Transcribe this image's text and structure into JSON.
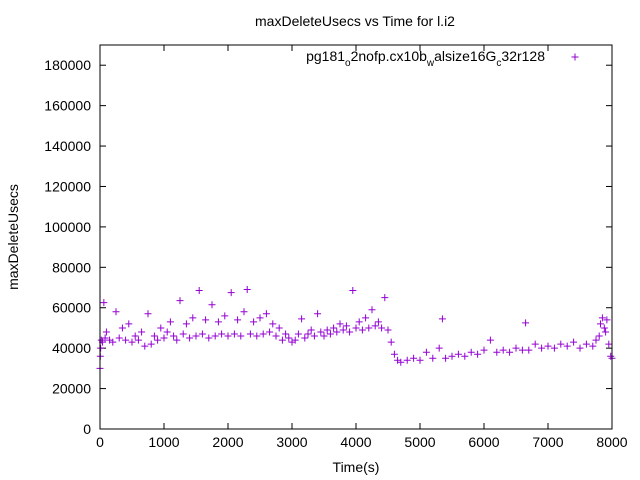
{
  "chart_data": {
    "type": "scatter",
    "title": "maxDeleteUsecs vs Time for l.i2",
    "xlabel": "Time(s)",
    "ylabel": "maxDeleteUsecs",
    "xlim": [
      0,
      8000
    ],
    "ylim": [
      0,
      190000
    ],
    "xticks": [
      0,
      1000,
      2000,
      3000,
      4000,
      5000,
      6000,
      7000,
      8000
    ],
    "yticks": [
      0,
      20000,
      40000,
      60000,
      80000,
      100000,
      120000,
      140000,
      160000,
      180000
    ],
    "xtick_labels": [
      "0",
      "1000",
      "2000",
      "3000",
      "4000",
      "5000",
      "6000",
      "7000",
      "8000"
    ],
    "ytick_labels": [
      "0",
      "20000",
      "40000",
      "60000",
      "80000",
      "100000",
      "120000",
      "140000",
      "160000",
      "180000"
    ],
    "grid": false,
    "legend_position": "top-right",
    "marker": "+",
    "color": "#9400d3",
    "series": [
      {
        "name": "pg181_o2nofp.cx10b_walsize16G_c32r128",
        "label_parts": [
          {
            "t": "pg181",
            "sub": false
          },
          {
            "t": "o",
            "sub": true
          },
          {
            "t": "2nofp.cx10b",
            "sub": false
          },
          {
            "t": "w",
            "sub": true
          },
          {
            "t": "alsize16G",
            "sub": false
          },
          {
            "t": "c",
            "sub": true
          },
          {
            "t": "32r128",
            "sub": false
          }
        ],
        "points": [
          [
            0,
            30000
          ],
          [
            5,
            36000
          ],
          [
            10,
            40000
          ],
          [
            20,
            44000
          ],
          [
            40,
            43000
          ],
          [
            60,
            62500
          ],
          [
            80,
            45000
          ],
          [
            100,
            48000
          ],
          [
            150,
            44000
          ],
          [
            200,
            43000
          ],
          [
            250,
            58000
          ],
          [
            300,
            45000
          ],
          [
            350,
            50000
          ],
          [
            400,
            44000
          ],
          [
            450,
            52000
          ],
          [
            500,
            43000
          ],
          [
            550,
            46000
          ],
          [
            600,
            44000
          ],
          [
            650,
            48000
          ],
          [
            700,
            41000
          ],
          [
            750,
            57000
          ],
          [
            800,
            42000
          ],
          [
            850,
            46000
          ],
          [
            900,
            44000
          ],
          [
            950,
            50000
          ],
          [
            1000,
            45000
          ],
          [
            1050,
            48000
          ],
          [
            1100,
            53000
          ],
          [
            1150,
            46000
          ],
          [
            1200,
            44000
          ],
          [
            1250,
            63500
          ],
          [
            1300,
            47000
          ],
          [
            1350,
            52000
          ],
          [
            1400,
            45000
          ],
          [
            1450,
            55000
          ],
          [
            1500,
            46000
          ],
          [
            1550,
            68500
          ],
          [
            1600,
            47000
          ],
          [
            1650,
            54000
          ],
          [
            1700,
            45000
          ],
          [
            1750,
            61500
          ],
          [
            1800,
            46000
          ],
          [
            1850,
            53000
          ],
          [
            1900,
            47000
          ],
          [
            1950,
            56000
          ],
          [
            2000,
            46000
          ],
          [
            2050,
            67500
          ],
          [
            2100,
            47000
          ],
          [
            2150,
            54000
          ],
          [
            2200,
            46000
          ],
          [
            2250,
            58000
          ],
          [
            2300,
            69000
          ],
          [
            2350,
            47000
          ],
          [
            2400,
            53000
          ],
          [
            2450,
            46000
          ],
          [
            2500,
            55000
          ],
          [
            2550,
            47000
          ],
          [
            2600,
            57000
          ],
          [
            2650,
            48000
          ],
          [
            2700,
            52000
          ],
          [
            2750,
            46000
          ],
          [
            2800,
            50000
          ],
          [
            2850,
            44000
          ],
          [
            2900,
            47000
          ],
          [
            2950,
            45000
          ],
          [
            3000,
            43000
          ],
          [
            3050,
            44000
          ],
          [
            3100,
            47000
          ],
          [
            3150,
            54500
          ],
          [
            3200,
            45000
          ],
          [
            3250,
            47000
          ],
          [
            3300,
            49000
          ],
          [
            3350,
            46000
          ],
          [
            3400,
            57000
          ],
          [
            3450,
            48000
          ],
          [
            3500,
            46000
          ],
          [
            3550,
            49000
          ],
          [
            3600,
            47000
          ],
          [
            3650,
            50000
          ],
          [
            3700,
            48000
          ],
          [
            3750,
            52000
          ],
          [
            3800,
            49000
          ],
          [
            3850,
            51000
          ],
          [
            3900,
            48000
          ],
          [
            3950,
            68500
          ],
          [
            4000,
            50000
          ],
          [
            4050,
            53000
          ],
          [
            4100,
            49000
          ],
          [
            4150,
            55000
          ],
          [
            4200,
            50000
          ],
          [
            4250,
            59000
          ],
          [
            4300,
            51000
          ],
          [
            4350,
            53000
          ],
          [
            4400,
            50000
          ],
          [
            4450,
            65000
          ],
          [
            4500,
            49000
          ],
          [
            4550,
            43000
          ],
          [
            4600,
            37000
          ],
          [
            4650,
            34000
          ],
          [
            4700,
            33000
          ],
          [
            4800,
            34000
          ],
          [
            4900,
            35000
          ],
          [
            5000,
            34000
          ],
          [
            5100,
            38000
          ],
          [
            5200,
            35000
          ],
          [
            5300,
            40000
          ],
          [
            5350,
            54500
          ],
          [
            5400,
            35000
          ],
          [
            5500,
            36000
          ],
          [
            5600,
            37000
          ],
          [
            5700,
            36000
          ],
          [
            5800,
            38000
          ],
          [
            5900,
            37000
          ],
          [
            6000,
            39000
          ],
          [
            6100,
            44000
          ],
          [
            6200,
            38000
          ],
          [
            6300,
            39000
          ],
          [
            6400,
            38000
          ],
          [
            6500,
            40000
          ],
          [
            6600,
            39000
          ],
          [
            6650,
            52500
          ],
          [
            6700,
            39000
          ],
          [
            6800,
            42000
          ],
          [
            6900,
            40000
          ],
          [
            7000,
            41000
          ],
          [
            7100,
            40000
          ],
          [
            7200,
            42000
          ],
          [
            7300,
            41000
          ],
          [
            7400,
            43000
          ],
          [
            7500,
            40000
          ],
          [
            7600,
            42000
          ],
          [
            7700,
            41000
          ],
          [
            7750,
            44000
          ],
          [
            7800,
            46000
          ],
          [
            7820,
            52000
          ],
          [
            7850,
            55000
          ],
          [
            7880,
            50000
          ],
          [
            7900,
            48000
          ],
          [
            7920,
            54000
          ],
          [
            7950,
            42000
          ],
          [
            7980,
            36000
          ],
          [
            8000,
            35000
          ]
        ]
      }
    ]
  }
}
